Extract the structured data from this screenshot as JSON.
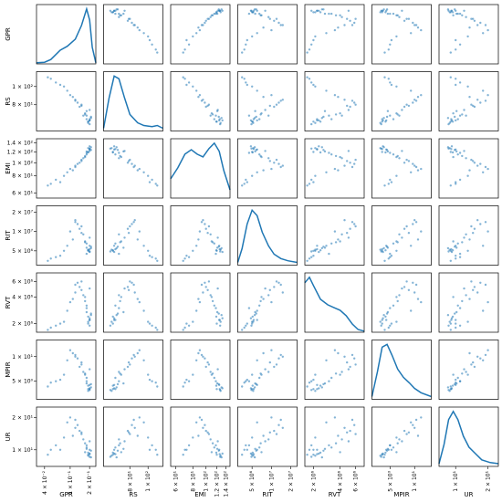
{
  "chart_data": {
    "type": "scatter_matrix",
    "color": "#1f77b4",
    "log_scale": true,
    "variables": [
      {
        "name": "GPR",
        "lim": [
          0.03,
          0.25
        ],
        "ticks": [
          {
            "value": 0.04,
            "label": "4 × 10⁻²"
          },
          {
            "value": 0.1,
            "label": "1 × 10⁻¹"
          },
          {
            "value": 0.2,
            "label": "2 × 10⁻¹"
          }
        ],
        "values": [
          0.19,
          0.2,
          0.18,
          0.17,
          0.21,
          0.2,
          0.15,
          0.12,
          0.1,
          0.09,
          0.08,
          0.06,
          0.05,
          0.045,
          0.19,
          0.18,
          0.16,
          0.2,
          0.21,
          0.14,
          0.13,
          0.11,
          0.07,
          0.19,
          0.2,
          0.17,
          0.18,
          0.15,
          0.12,
          0.2
        ],
        "kde_x": [
          0.03,
          0.04,
          0.05,
          0.07,
          0.09,
          0.12,
          0.15,
          0.18,
          0.2,
          0.22,
          0.25
        ],
        "kde_y": [
          0.02,
          0.03,
          0.08,
          0.25,
          0.32,
          0.45,
          0.7,
          1.0,
          0.8,
          0.3,
          0.02
        ]
      },
      {
        "name": "RS",
        "lim": [
          58,
          120
        ],
        "ticks": [
          {
            "value": 80,
            "label": "8 × 10¹"
          },
          {
            "value": 100,
            "label": "1 × 10²"
          }
        ],
        "values": [
          65,
          66,
          70,
          72,
          68,
          75,
          80,
          85,
          90,
          95,
          100,
          105,
          110,
          112,
          64,
          67,
          70,
          66,
          69,
          78,
          82,
          88,
          102,
          65,
          63,
          71,
          74,
          79,
          84,
          67
        ],
        "kde_x": [
          58,
          62,
          66,
          70,
          75,
          80,
          88,
          95,
          105,
          112,
          120
        ],
        "kde_y": [
          0.05,
          0.6,
          1.0,
          0.95,
          0.6,
          0.3,
          0.15,
          0.1,
          0.08,
          0.1,
          0.05
        ]
      },
      {
        "name": "EMI",
        "lim": [
          55,
          150
        ],
        "ticks": [
          {
            "value": 60,
            "label": "6 × 10¹"
          },
          {
            "value": 80,
            "label": "8 × 10¹"
          },
          {
            "value": 100,
            "label": "1 × 10²"
          },
          {
            "value": 120,
            "label": "1.2 × 10²"
          },
          {
            "value": 140,
            "label": "1.4 × 10²"
          }
        ],
        "values": [
          120,
          125,
          118,
          110,
          130,
          122,
          105,
          95,
          90,
          85,
          80,
          75,
          70,
          68,
          128,
          115,
          108,
          132,
          124,
          100,
          98,
          88,
          72,
          119,
          127,
          112,
          121,
          103,
          93,
          126
        ],
        "kde_x": [
          55,
          62,
          70,
          78,
          86,
          95,
          105,
          115,
          125,
          135,
          150
        ],
        "kde_y": [
          0.35,
          0.55,
          0.8,
          0.88,
          0.8,
          0.75,
          0.9,
          1.0,
          0.85,
          0.5,
          0.15
        ]
      },
      {
        "name": "RIT",
        "lim": [
          3000000,
          25000000
        ],
        "ticks": [
          {
            "value": 5000000,
            "label": "5 × 10⁶"
          },
          {
            "value": 10000000,
            "label": "1 × 10⁷"
          },
          {
            "value": 20000000,
            "label": "2 × 10⁷"
          }
        ],
        "values": [
          5000000,
          6000000,
          4500000,
          7000000,
          5500000,
          8000000,
          12000000,
          15000000,
          10000000,
          6000000,
          5000000,
          4000000,
          3800000,
          3500000,
          5200000,
          6500000,
          9000000,
          4800000,
          5800000,
          11000000,
          13000000,
          7500000,
          4200000,
          5100000,
          4900000,
          6800000,
          5600000,
          9500000,
          14000000,
          5300000
        ],
        "kde_x": [
          3000000,
          3500000,
          4200000,
          5000000,
          6000000,
          7200000,
          9000000,
          11000000,
          14000000,
          18000000,
          25000000
        ],
        "kde_y": [
          0.05,
          0.3,
          0.75,
          1.0,
          0.9,
          0.6,
          0.35,
          0.2,
          0.12,
          0.08,
          0.05
        ]
      },
      {
        "name": "RVT",
        "lim": [
          1600000,
          7500000
        ],
        "ticks": [
          {
            "value": 2000000,
            "label": "2 × 10⁶"
          },
          {
            "value": 4000000,
            "label": "4 × 10⁶"
          },
          {
            "value": 6000000,
            "label": "6 × 10⁶"
          }
        ],
        "values": [
          2000000,
          2200000,
          3000000,
          4000000,
          2500000,
          5000000,
          6000000,
          4500000,
          3500000,
          2800000,
          2100000,
          1900000,
          1800000,
          1700000,
          2100000,
          3200000,
          4200000,
          2300000,
          2600000,
          5200000,
          5800000,
          3800000,
          2000000,
          2400000,
          1900000,
          3600000,
          2700000,
          4800000,
          5500000,
          2200000
        ],
        "kde_x": [
          1600000,
          1800000,
          2000000,
          2400000,
          2900000,
          3400000,
          4000000,
          4700000,
          5500000,
          6400000,
          7500000
        ],
        "kde_y": [
          0.9,
          1.0,
          0.85,
          0.6,
          0.5,
          0.45,
          0.4,
          0.3,
          0.15,
          0.05,
          0.02
        ]
      },
      {
        "name": "MPIR",
        "lim": [
          3,
          16
        ],
        "ticks": [
          {
            "value": 5,
            "label": "5 × 10⁰"
          },
          {
            "value": 10,
            "label": "1 × 10¹"
          }
        ],
        "values": [
          4,
          4.5,
          5,
          6,
          4.2,
          7,
          8,
          10,
          12,
          9,
          6,
          5,
          4.8,
          4.3,
          3.8,
          5.5,
          6.5,
          4.1,
          4.6,
          7.5,
          9.5,
          11,
          5.2,
          4.4,
          3.9,
          6.2,
          4.7,
          8.5,
          10.5,
          4
        ],
        "kde_x": [
          3,
          3.5,
          4,
          4.6,
          5.3,
          6.2,
          7.3,
          8.6,
          10,
          12,
          16
        ],
        "kde_y": [
          0.05,
          0.5,
          0.95,
          1.0,
          0.8,
          0.55,
          0.4,
          0.3,
          0.2,
          0.12,
          0.05
        ]
      },
      {
        "name": "UR",
        "lim": [
          7,
          25
        ],
        "ticks": [
          {
            "value": 10,
            "label": "1 × 10¹"
          },
          {
            "value": 20,
            "label": "2 × 10¹"
          }
        ],
        "values": [
          9,
          10,
          11,
          9.5,
          8.5,
          12,
          14,
          16,
          20,
          18,
          13,
          11,
          10,
          9,
          8.8,
          10.5,
          12.5,
          9.2,
          9.8,
          15,
          17,
          13.5,
          10,
          9.4,
          8.6,
          11.5,
          10.2,
          14.5,
          19,
          9.1
        ],
        "kde_x": [
          7,
          7.8,
          8.6,
          9.5,
          10.5,
          11.8,
          13.3,
          15,
          17.5,
          21,
          25
        ],
        "kde_y": [
          0.05,
          0.4,
          0.85,
          1.0,
          0.85,
          0.55,
          0.35,
          0.25,
          0.12,
          0.07,
          0.05
        ]
      }
    ]
  }
}
